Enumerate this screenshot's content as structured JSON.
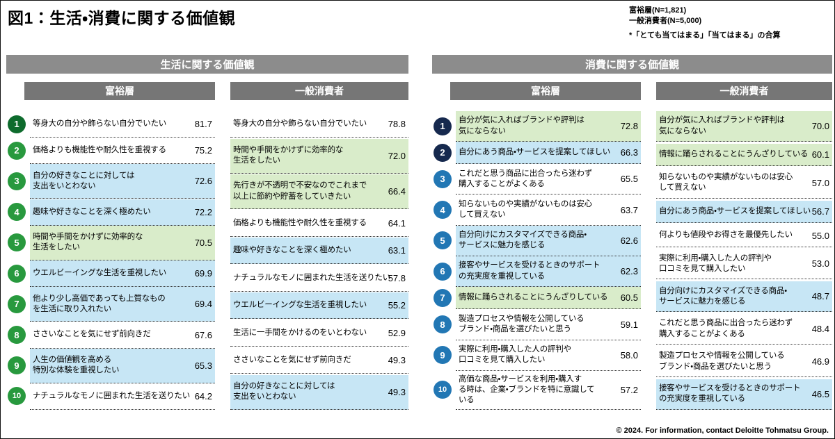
{
  "title": "図1：生活・消費に関する価値観",
  "notes": {
    "wealthy_n": "富裕層(N=1,821)",
    "general_n": "一般消費者(N=5,000)",
    "aggregation": "*「とても当てはまる」「当てはまる」の合算"
  },
  "footer": "© 2024. For information, contact Deloitte Tohmatsu Group.",
  "colors": {
    "row_highlight_blue": "#c7e6f5",
    "row_highlight_green": "#d9ecca",
    "section_header_bg": "#8c8c8c",
    "column_header_bg": "#767676",
    "life_badge_dark": "#0e6b2d",
    "life_badge_normal": "#28993e",
    "consumption_badge_dark": "#16294e",
    "consumption_badge_normal": "#2277b4"
  },
  "sections": [
    {
      "id": "life",
      "header": "生活に関する価値観",
      "badge_colors": {
        "dark": "#0e6b2d",
        "normal": "#28993e"
      },
      "columns": [
        {
          "header": "富裕層",
          "numbered": true,
          "items": [
            {
              "rank": 1,
              "text": "等身大の自分や飾らない自分でいたい",
              "value": "81.7",
              "bg": "white",
              "badge": "dark"
            },
            {
              "rank": 2,
              "text": "価格よりも機能性や耐久性を重視する",
              "value": "75.2",
              "bg": "white",
              "badge": "normal"
            },
            {
              "rank": 3,
              "text": "自分の好きなことに対しては\n支出をいとわない",
              "value": "72.6",
              "bg": "blue",
              "badge": "normal"
            },
            {
              "rank": 4,
              "text": "趣味や好きなことを深く極めたい",
              "value": "72.2",
              "bg": "blue",
              "badge": "normal"
            },
            {
              "rank": 5,
              "text": "時間や手間をかけずに効率的な\n生活をしたい",
              "value": "70.5",
              "bg": "green",
              "badge": "normal"
            },
            {
              "rank": 6,
              "text": "ウエルビーイングな生活を重視したい",
              "value": "69.9",
              "bg": "blue",
              "badge": "normal"
            },
            {
              "rank": 7,
              "text": "他より少し高価であっても上質なもの\nを生活に取り入れたい",
              "value": "69.4",
              "bg": "blue",
              "badge": "normal"
            },
            {
              "rank": 8,
              "text": "ささいなことを気にせず前向きだ",
              "value": "67.6",
              "bg": "white",
              "badge": "normal"
            },
            {
              "rank": 9,
              "text": "人生の価値観を高める\n特別な体験を重視したい",
              "value": "65.3",
              "bg": "blue",
              "badge": "normal"
            },
            {
              "rank": 10,
              "text": "ナチュラルなモノに囲まれた生活を送りたい",
              "value": "64.2",
              "bg": "white",
              "badge": "normal"
            }
          ]
        },
        {
          "header": "一般消費者",
          "numbered": false,
          "items": [
            {
              "text": "等身大の自分や飾らない自分でいたい",
              "value": "78.8",
              "bg": "white"
            },
            {
              "text": "時間や手間をかけずに効率的な\n生活をしたい",
              "value": "72.0",
              "bg": "green"
            },
            {
              "text": "先行きが不透明で不安なのでこれまで\n以上に節約や貯蓄をしていきたい",
              "value": "66.4",
              "bg": "green"
            },
            {
              "text": "価格よりも機能性や耐久性を重視する",
              "value": "64.1",
              "bg": "white"
            },
            {
              "text": "趣味や好きなことを深く極めたい",
              "value": "63.1",
              "bg": "blue"
            },
            {
              "text": "ナチュラルなモノに囲まれた生活を送りたい",
              "value": "57.8",
              "bg": "white"
            },
            {
              "text": "ウエルビーイングな生活を重視したい",
              "value": "55.2",
              "bg": "blue"
            },
            {
              "text": "生活に一手間をかけるのをいとわない",
              "value": "52.9",
              "bg": "white"
            },
            {
              "text": "ささいなことを気にせず前向きだ",
              "value": "49.3",
              "bg": "white"
            },
            {
              "text": "自分の好きなことに対しては\n支出をいとわない",
              "value": "49.3",
              "bg": "blue"
            }
          ]
        }
      ]
    },
    {
      "id": "consumption",
      "header": "消費に関する価値観",
      "badge_colors": {
        "dark": "#16294e",
        "normal": "#2277b4"
      },
      "columns": [
        {
          "header": "富裕層",
          "numbered": true,
          "items": [
            {
              "rank": 1,
              "text": "自分が気に入ればブランドや評判は\n気にならない",
              "value": "72.8",
              "bg": "green",
              "badge": "dark"
            },
            {
              "rank": 2,
              "text": "自分にあう商品・サービスを提案してほしい",
              "value": "66.3",
              "bg": "blue",
              "badge": "dark"
            },
            {
              "rank": 3,
              "text": "これだと思う商品に出合ったら迷わず\n購入することがよくある",
              "value": "65.5",
              "bg": "white",
              "badge": "normal"
            },
            {
              "rank": 4,
              "text": "知らないものや実績がないものは安心\nして買えない",
              "value": "63.7",
              "bg": "white",
              "badge": "normal"
            },
            {
              "rank": 5,
              "text": "自分向けにカスタマイズできる商品・\nサービスに魅力を感じる",
              "value": "62.6",
              "bg": "blue",
              "badge": "normal"
            },
            {
              "rank": 6,
              "text": "接客やサービスを受けるときのサポート\nの充実度を重視している",
              "value": "62.3",
              "bg": "blue",
              "badge": "normal"
            },
            {
              "rank": 7,
              "text": "情報に踊らされることにうんざりしている",
              "value": "60.5",
              "bg": "green",
              "badge": "normal"
            },
            {
              "rank": 8,
              "text": "製造プロセスや情報を公開している\nブランド・商品を選びたいと思う",
              "value": "59.1",
              "bg": "white",
              "badge": "normal"
            },
            {
              "rank": 9,
              "text": "実際に利用・購入した人の評判や\n口コミを見て購入したい",
              "value": "58.0",
              "bg": "white",
              "badge": "normal"
            },
            {
              "rank": 10,
              "text": "高価な商品・サービスを利用・購入す\nる時は、企業・ブランドを特に意識して\nいる",
              "value": "57.2",
              "bg": "white",
              "badge": "normal"
            }
          ]
        },
        {
          "header": "一般消費者",
          "numbered": false,
          "items": [
            {
              "text": "自分が気に入ればブランドや評判は\n気にならない",
              "value": "70.0",
              "bg": "green"
            },
            {
              "text": "情報に踊らされることにうんざりしている",
              "value": "60.1",
              "bg": "green"
            },
            {
              "text": "知らないものや実績がないものは安心\nして買えない",
              "value": "57.0",
              "bg": "white"
            },
            {
              "text": "自分にあう商品・サービスを提案してほしい",
              "value": "56.7",
              "bg": "blue"
            },
            {
              "text": "何よりも値段やお得さを最優先したい",
              "value": "55.0",
              "bg": "white"
            },
            {
              "text": "実際に利用・購入した人の評判や\n口コミを見て購入したい",
              "value": "53.0",
              "bg": "white"
            },
            {
              "text": "自分向けにカスタマイズできる商品・\nサービスに魅力を感じる",
              "value": "48.7",
              "bg": "blue"
            },
            {
              "text": "これだと思う商品に出合ったら迷わず\n購入することがよくある",
              "value": "48.4",
              "bg": "white"
            },
            {
              "text": "製造プロセスや情報を公開している\nブランド・商品を選びたいと思う",
              "value": "46.9",
              "bg": "white"
            },
            {
              "text": "接客やサービスを受けるときのサポート\nの充実度を重視している",
              "value": "46.5",
              "bg": "blue"
            }
          ]
        }
      ]
    }
  ],
  "chart_data": {
    "type": "table",
    "title": "図1：生活・消費に関する価値観",
    "note": "「とても当てはまる」「当てはまる」の合算",
    "sample_sizes": {
      "富裕層": 1821,
      "一般消費者": 5000
    },
    "tables": [
      {
        "section": "生活に関する価値観",
        "group": "富裕層",
        "categories": [
          "等身大の自分や飾らない自分でいたい",
          "価格よりも機能性や耐久性を重視する",
          "自分の好きなことに対しては支出をいとわない",
          "趣味や好きなことを深く極めたい",
          "時間や手間をかけずに効率的な生活をしたい",
          "ウエルビーイングな生活を重視したい",
          "他より少し高価であっても上質なものを生活に取り入れたい",
          "ささいなことを気にせず前向きだ",
          "人生の価値観を高める特別な体験を重視したい",
          "ナチュラルなモノに囲まれた生活を送りたい"
        ],
        "values": [
          81.7,
          75.2,
          72.6,
          72.2,
          70.5,
          69.9,
          69.4,
          67.6,
          65.3,
          64.2
        ]
      },
      {
        "section": "生活に関する価値観",
        "group": "一般消費者",
        "categories": [
          "等身大の自分や飾らない自分でいたい",
          "時間や手間をかけずに効率的な生活をしたい",
          "先行きが不透明で不安なのでこれまで以上に節約や貯蓄をしていきたい",
          "価格よりも機能性や耐久性を重視する",
          "趣味や好きなことを深く極めたい",
          "ナチュラルなモノに囲まれた生活を送りたい",
          "ウエルビーイングな生活を重視したい",
          "生活に一手間をかけるのをいとわない",
          "ささいなことを気にせず前向きだ",
          "自分の好きなことに対しては支出をいとわない"
        ],
        "values": [
          78.8,
          72.0,
          66.4,
          64.1,
          63.1,
          57.8,
          55.2,
          52.9,
          49.3,
          49.3
        ]
      },
      {
        "section": "消費に関する価値観",
        "group": "富裕層",
        "categories": [
          "自分が気に入ればブランドや評判は気にならない",
          "自分にあう商品・サービスを提案してほしい",
          "これだと思う商品に出合ったら迷わず購入することがよくある",
          "知らないものや実績がないものは安心して買えない",
          "自分向けにカスタマイズできる商品・サービスに魅力を感じる",
          "接客やサービスを受けるときのサポートの充実度を重視している",
          "情報に踊らされることにうんざりしている",
          "製造プロセスや情報を公開しているブランド・商品を選びたいと思う",
          "実際に利用・購入した人の評判や口コミを見て購入したい",
          "高価な商品・サービスを利用・購入する時は、企業・ブランドを特に意識している"
        ],
        "values": [
          72.8,
          66.3,
          65.5,
          63.7,
          62.6,
          62.3,
          60.5,
          59.1,
          58.0,
          57.2
        ]
      },
      {
        "section": "消費に関する価値観",
        "group": "一般消費者",
        "categories": [
          "自分が気に入ればブランドや評判は気にならない",
          "情報に踊らされることにうんざりしている",
          "知らないものや実績がないものは安心して買えない",
          "自分にあう商品・サービスを提案してほしい",
          "何よりも値段やお得さを最優先したい",
          "実際に利用・購入した人の評判や口コミを見て購入したい",
          "自分向けにカスタマイズできる商品・サービスに魅力を感じる",
          "これだと思う商品に出合ったら迷わず購入することがよくある",
          "製造プロセスや情報を公開しているブランド・商品を選びたいと思う",
          "接客やサービスを受けるときのサポートの充実度を重視している"
        ],
        "values": [
          70.0,
          60.1,
          57.0,
          56.7,
          55.0,
          53.0,
          48.7,
          48.4,
          46.9,
          46.5
        ]
      }
    ]
  }
}
